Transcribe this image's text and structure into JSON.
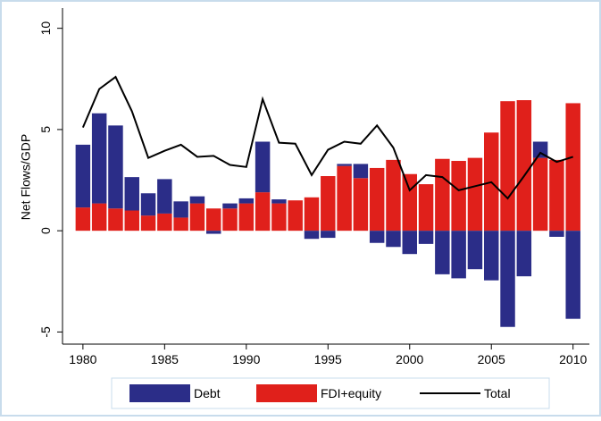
{
  "chart_data": {
    "type": "bar",
    "stacked": true,
    "ylabel": "Net Flows/GDP",
    "x": [
      1980,
      1981,
      1982,
      1983,
      1984,
      1985,
      1986,
      1987,
      1988,
      1989,
      1990,
      1991,
      1992,
      1993,
      1994,
      1995,
      1996,
      1997,
      1998,
      1999,
      2000,
      2001,
      2002,
      2003,
      2004,
      2005,
      2006,
      2007,
      2008,
      2009,
      2010
    ],
    "xlim": [
      1978.75,
      2011
    ],
    "xticks": [
      1980,
      1985,
      1990,
      1995,
      2000,
      2005,
      2010
    ],
    "ylim": [
      -5.6,
      11
    ],
    "yticks": [
      -5,
      0,
      5,
      10
    ],
    "legend": "bottom",
    "series": [
      {
        "name": "Debt",
        "type": "bar",
        "color": "#2b2d88",
        "values": [
          3.1,
          4.45,
          4.1,
          1.65,
          1.1,
          1.7,
          0.8,
          0.35,
          -0.15,
          0.25,
          0.25,
          2.5,
          0.2,
          0,
          -0.4,
          -0.35,
          0.1,
          0.7,
          -0.6,
          -0.8,
          -1.15,
          -0.65,
          -2.15,
          -2.35,
          -1.9,
          -2.45,
          -4.75,
          -2.25,
          0.8,
          -0.3,
          -4.35
        ]
      },
      {
        "name": "FDI+equity",
        "type": "bar",
        "color": "#e0201b",
        "values": [
          1.15,
          1.35,
          1.1,
          1.0,
          0.75,
          0.85,
          0.65,
          1.35,
          1.1,
          1.1,
          1.35,
          1.9,
          1.35,
          1.5,
          1.65,
          2.7,
          3.2,
          2.6,
          3.1,
          3.5,
          2.8,
          2.3,
          3.55,
          3.45,
          3.6,
          4.85,
          6.4,
          6.45,
          3.6,
          3.5,
          6.3
        ]
      },
      {
        "name": "Total",
        "type": "line",
        "color": "#000000",
        "values": [
          5.1,
          7.0,
          7.6,
          5.9,
          3.6,
          3.95,
          4.25,
          3.65,
          3.7,
          3.25,
          3.15,
          6.5,
          4.35,
          4.3,
          2.75,
          4.0,
          4.4,
          4.3,
          5.2,
          4.1,
          2.0,
          2.75,
          2.65,
          2.0,
          2.2,
          2.4,
          1.6,
          2.7,
          3.85,
          3.4,
          3.65
        ]
      }
    ]
  }
}
